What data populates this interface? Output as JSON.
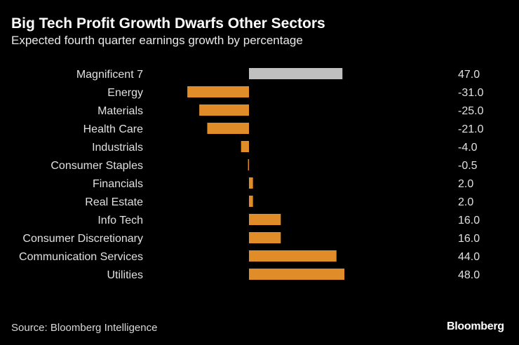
{
  "title": "Big Tech Profit Growth Dwarfs Other Sectors",
  "subtitle": "Expected fourth quarter earnings growth by percentage",
  "source": "Source: Bloomberg Intelligence",
  "logo": "Bloomberg",
  "chart_data": {
    "type": "bar",
    "orientation": "horizontal",
    "categories": [
      "Magnificent 7",
      "Energy",
      "Materials",
      "Health Care",
      "Industrials",
      "Consumer Staples",
      "Financials",
      "Real Estate",
      "Info Tech",
      "Consumer Discretionary",
      "Communication Services",
      "Utilities"
    ],
    "values": [
      47.0,
      -31.0,
      -25.0,
      -21.0,
      -4.0,
      -0.5,
      2.0,
      2.0,
      16.0,
      16.0,
      44.0,
      48.0
    ],
    "value_labels": [
      "47.0",
      "-31.0",
      "-25.0",
      "-21.0",
      "-4.0",
      "-0.5",
      "2.0",
      "2.0",
      "16.0",
      "16.0",
      "44.0",
      "48.0"
    ],
    "colors": {
      "highlight": "#c0c0c0",
      "default": "#e08c28"
    },
    "highlight_category": "Magnificent 7",
    "grid": false,
    "xlim": [
      -31,
      48
    ]
  }
}
